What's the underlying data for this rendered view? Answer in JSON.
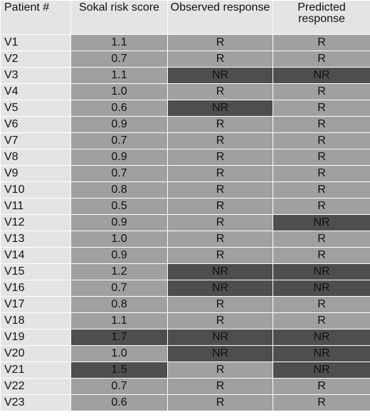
{
  "headers": [
    "Patient #",
    "Sokal risk score",
    "Observed response",
    "Predicted response"
  ],
  "rows": [
    {
      "patient": "V1",
      "sokal": "1.1",
      "observed": "R",
      "predicted": "R"
    },
    {
      "patient": "V2",
      "sokal": "0.7",
      "observed": "R",
      "predicted": "R"
    },
    {
      "patient": "V3",
      "sokal": "1.1",
      "observed": "NR",
      "predicted": "NR"
    },
    {
      "patient": "V4",
      "sokal": "1.0",
      "observed": "R",
      "predicted": "R"
    },
    {
      "patient": "V5",
      "sokal": "0.6",
      "observed": "NR",
      "predicted": "R"
    },
    {
      "patient": "V6",
      "sokal": "0.9",
      "observed": "R",
      "predicted": "R"
    },
    {
      "patient": "V7",
      "sokal": "0.7",
      "observed": "R",
      "predicted": "R"
    },
    {
      "patient": "V8",
      "sokal": "0.9",
      "observed": "R",
      "predicted": "R"
    },
    {
      "patient": "V9",
      "sokal": "0.7",
      "observed": "R",
      "predicted": "R"
    },
    {
      "patient": "V10",
      "sokal": "0.8",
      "observed": "R",
      "predicted": "R"
    },
    {
      "patient": "V11",
      "sokal": "0.5",
      "observed": "R",
      "predicted": "R"
    },
    {
      "patient": "V12",
      "sokal": "0.9",
      "observed": "R",
      "predicted": "NR"
    },
    {
      "patient": "V13",
      "sokal": "1.0",
      "observed": "R",
      "predicted": "R"
    },
    {
      "patient": "V14",
      "sokal": "0.9",
      "observed": "R",
      "predicted": "R"
    },
    {
      "patient": "V15",
      "sokal": "1.2",
      "observed": "NR",
      "predicted": "NR"
    },
    {
      "patient": "V16",
      "sokal": "0.7",
      "observed": "NR",
      "predicted": "NR"
    },
    {
      "patient": "V17",
      "sokal": "0.8",
      "observed": "R",
      "predicted": "R"
    },
    {
      "patient": "V18",
      "sokal": "1.1",
      "observed": "R",
      "predicted": "R"
    },
    {
      "patient": "V19",
      "sokal": "1.7",
      "observed": "NR",
      "predicted": "NR"
    },
    {
      "patient": "V20",
      "sokal": "1.0",
      "observed": "NR",
      "predicted": "NR"
    },
    {
      "patient": "V21",
      "sokal": "1.5",
      "observed": "R",
      "predicted": "NR"
    },
    {
      "patient": "V22",
      "sokal": "0.7",
      "observed": "R",
      "predicted": "R"
    },
    {
      "patient": "V23",
      "sokal": "0.6",
      "observed": "R",
      "predicted": "R"
    }
  ]
}
